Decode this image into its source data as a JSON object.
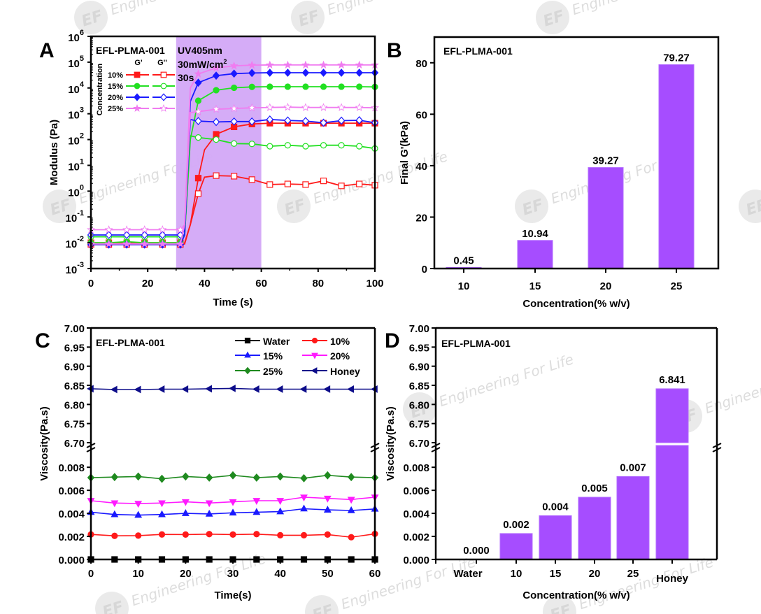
{
  "watermark": {
    "text": "Engineering For Life",
    "logo": "EFL"
  },
  "chart_data": [
    {
      "panel": "A",
      "type": "line",
      "title": "EFL-PLMA-001",
      "xlabel": "Time (s)",
      "ylabel": "Modulus (Pa)",
      "xlim": [
        0,
        100
      ],
      "ylim": [
        0.001,
        1000000
      ],
      "yscale": "log",
      "xticks": [
        "0",
        "20",
        "40",
        "60",
        "80",
        "100"
      ],
      "yticks": [
        {
          "base": "10",
          "exp": "-3"
        },
        {
          "base": "10",
          "exp": "-2"
        },
        {
          "base": "10",
          "exp": "-1"
        },
        {
          "base": "10",
          "exp": "0"
        },
        {
          "base": "10",
          "exp": "1"
        },
        {
          "base": "10",
          "exp": "2"
        },
        {
          "base": "10",
          "exp": "3"
        },
        {
          "base": "10",
          "exp": "4"
        },
        {
          "base": "10",
          "exp": "5"
        },
        {
          "base": "10",
          "exp": "6"
        }
      ],
      "shaded_region": {
        "x": [
          30,
          60
        ],
        "color": "#d3a8f7"
      },
      "annotations": {
        "line1": "UV405nm",
        "line2": "30mW/cm",
        "line2_sup": "2",
        "line3": "30s"
      },
      "legend": {
        "title": "Concentration",
        "col1": "G'",
        "col2": "G''",
        "rows": [
          {
            "label": "10%",
            "color": "#ff1a1a",
            "marker": "square"
          },
          {
            "label": "15%",
            "color": "#22e022",
            "marker": "circle"
          },
          {
            "label": "20%",
            "color": "#1a1aff",
            "marker": "diamond"
          },
          {
            "label": "25%",
            "color": "#f07cf0",
            "marker": "star"
          }
        ]
      },
      "series": [
        {
          "name": "10% G'",
          "color": "#ff1a1a",
          "marker": "square",
          "filled": true,
          "x": [
            0,
            6.3,
            12.6,
            18.9,
            25.2,
            31.5,
            33,
            35,
            37.8,
            40,
            44.1,
            50.4,
            56.7,
            63,
            69.3,
            75.6,
            81.9,
            88.2,
            94.5,
            100
          ],
          "y": [
            0.0085,
            0.0085,
            0.0085,
            0.0085,
            0.0085,
            0.0085,
            0.009,
            0.05,
            3.2,
            40,
            160,
            310,
            400,
            430,
            430,
            430,
            430,
            430,
            430,
            430
          ]
        },
        {
          "name": "10% G''",
          "color": "#ff1a1a",
          "marker": "square",
          "filled": false,
          "x": [
            0,
            6.3,
            12.6,
            18.9,
            25.2,
            31.5,
            33,
            35,
            37.8,
            40,
            44.1,
            50.4,
            56.7,
            63,
            69.3,
            75.6,
            81.9,
            88.2,
            94.5,
            100
          ],
          "y": [
            0.01,
            0.01,
            0.01,
            0.01,
            0.01,
            0.01,
            0.01,
            0.05,
            0.8,
            3.5,
            4,
            3.8,
            2.8,
            1.8,
            1.9,
            1.8,
            2.5,
            1.6,
            1.9,
            1.7
          ]
        },
        {
          "name": "15% G'",
          "color": "#22e022",
          "marker": "circle",
          "filled": true,
          "x": [
            0,
            6.3,
            12.6,
            18.9,
            25.2,
            31.5,
            33,
            35,
            37.8,
            44.1,
            50.4,
            56.7,
            63,
            69.3,
            75.6,
            81.9,
            88.2,
            94.5,
            100
          ],
          "y": [
            0.01,
            0.01,
            0.011,
            0.01,
            0.01,
            0.01,
            0.02,
            100,
            3200,
            8200,
            10200,
            11000,
            11200,
            11200,
            11200,
            11200,
            11200,
            11200,
            11000
          ]
        },
        {
          "name": "15% G''",
          "color": "#22e022",
          "marker": "circle",
          "filled": false,
          "x": [
            0,
            6.3,
            12.6,
            18.9,
            25.2,
            31.5,
            33,
            35,
            37.8,
            44.1,
            50.4,
            56.7,
            63,
            69.3,
            75.6,
            81.9,
            88.2,
            94.5,
            100
          ],
          "y": [
            0.017,
            0.017,
            0.017,
            0.017,
            0.017,
            0.017,
            0.02,
            140,
            120,
            100,
            70,
            68,
            55,
            60,
            55,
            60,
            60,
            55,
            45
          ]
        },
        {
          "name": "20% G'",
          "color": "#1a1aff",
          "marker": "diamond",
          "filled": true,
          "x": [
            0,
            6.3,
            12.6,
            18.9,
            25.2,
            31.5,
            33,
            35,
            37.8,
            44.1,
            50.4,
            56.7,
            63,
            69.3,
            75.6,
            81.9,
            88.2,
            94.5,
            100
          ],
          "y": [
            0.0085,
            0.0085,
            0.0085,
            0.0085,
            0.0085,
            0.0085,
            0.02,
            3000,
            16000,
            30000,
            36000,
            38000,
            39000,
            39000,
            39000,
            39000,
            39000,
            39000,
            39000
          ]
        },
        {
          "name": "20% G''",
          "color": "#1a1aff",
          "marker": "diamond",
          "filled": false,
          "x": [
            0,
            6.3,
            12.6,
            18.9,
            25.2,
            31.5,
            33,
            35,
            37.8,
            44.1,
            50.4,
            56.7,
            63,
            69.3,
            75.6,
            81.9,
            88.2,
            94.5,
            100
          ],
          "y": [
            0.02,
            0.02,
            0.02,
            0.02,
            0.02,
            0.02,
            0.03,
            600,
            520,
            480,
            500,
            500,
            600,
            550,
            520,
            450,
            540,
            560,
            450
          ]
        },
        {
          "name": "25% G'",
          "color": "#f07cf0",
          "marker": "star",
          "filled": true,
          "x": [
            0,
            6.3,
            12.6,
            18.9,
            25.2,
            31.5,
            33,
            35,
            37.8,
            44.1,
            50.4,
            56.7,
            63,
            69.3,
            75.6,
            81.9,
            88.2,
            94.5,
            100
          ],
          "y": [
            0.009,
            0.009,
            0.009,
            0.009,
            0.009,
            0.009,
            0.05,
            10000,
            35000,
            60000,
            72000,
            77000,
            78000,
            78000,
            78000,
            78000,
            78000,
            78000,
            78000
          ]
        },
        {
          "name": "25% G''",
          "color": "#f07cf0",
          "marker": "star",
          "filled": false,
          "x": [
            0,
            6.3,
            12.6,
            18.9,
            25.2,
            31.5,
            33,
            35,
            37.8,
            44.1,
            50.4,
            56.7,
            63,
            69.3,
            75.6,
            81.9,
            88.2,
            94.5,
            100
          ],
          "y": [
            0.032,
            0.032,
            0.032,
            0.032,
            0.032,
            0.032,
            0.05,
            1100,
            1200,
            1500,
            1600,
            1700,
            1750,
            1800,
            1750,
            1750,
            1750,
            1750,
            1700
          ]
        }
      ]
    },
    {
      "panel": "B",
      "type": "bar",
      "title": "EFL-PLMA-001",
      "xlabel": "Concentration(% w/v)",
      "ylabel": "Final G'(kPa)",
      "categories": [
        "10",
        "15",
        "20",
        "25"
      ],
      "values": [
        0.45,
        10.94,
        39.27,
        79.27
      ],
      "data_labels": [
        "0.45",
        "10.94",
        "39.27",
        "79.27"
      ],
      "ylim": [
        0,
        90
      ],
      "yticks": [
        "0",
        "20",
        "40",
        "60",
        "80"
      ],
      "bar_color": "#a64dff"
    },
    {
      "panel": "C",
      "type": "line",
      "title": "EFL-PLMA-001",
      "xlabel": "Time(s)",
      "ylabel": "Viscosity(Pa.s)",
      "xlim": [
        0,
        60
      ],
      "xticks": [
        "0",
        "10",
        "20",
        "30",
        "40",
        "50",
        "60"
      ],
      "y_broken_axis": {
        "lower": [
          0,
          0.0088
        ],
        "upper": [
          6.7,
          7.0
        ]
      },
      "yticks_lower": [
        "0.000",
        "0.002",
        "0.004",
        "0.006",
        "0.008"
      ],
      "yticks_upper": [
        "6.70",
        "6.75",
        "6.80",
        "6.85",
        "6.90",
        "6.95",
        "7.00"
      ],
      "legend": [
        "Water",
        "10%",
        "15%",
        "20%",
        "25%",
        "Honey"
      ],
      "x": [
        0,
        5,
        10,
        15,
        20,
        25,
        30,
        35,
        40,
        45,
        50,
        55,
        60
      ],
      "series": [
        {
          "name": "Water",
          "color": "#000000",
          "marker": "square",
          "values": [
            0,
            0,
            0,
            0,
            0,
            0,
            0,
            0,
            0,
            0,
            0,
            0,
            0
          ]
        },
        {
          "name": "10%",
          "color": "#ff1a1a",
          "marker": "circle",
          "values": [
            0.00217,
            0.00205,
            0.00207,
            0.00217,
            0.00216,
            0.0022,
            0.00216,
            0.0022,
            0.0021,
            0.0021,
            0.00216,
            0.00193,
            0.00222
          ]
        },
        {
          "name": "15%",
          "color": "#1a1aff",
          "marker": "triangle-up",
          "values": [
            0.0041,
            0.0039,
            0.00385,
            0.0039,
            0.004,
            0.00395,
            0.00405,
            0.0041,
            0.00415,
            0.0044,
            0.0043,
            0.00425,
            0.00438
          ]
        },
        {
          "name": "20%",
          "color": "#ff1aff",
          "marker": "triangle-down",
          "values": [
            0.0051,
            0.0049,
            0.00485,
            0.0049,
            0.005,
            0.0049,
            0.005,
            0.0051,
            0.0051,
            0.0054,
            0.0053,
            0.0052,
            0.0054
          ]
        },
        {
          "name": "25%",
          "color": "#1f8a1f",
          "marker": "diamond",
          "values": [
            0.0071,
            0.00715,
            0.0072,
            0.007,
            0.0072,
            0.0071,
            0.0073,
            0.0071,
            0.0072,
            0.00705,
            0.0073,
            0.00715,
            0.0071
          ]
        },
        {
          "name": "Honey",
          "color": "#0d0d8a",
          "marker": "triangle-left",
          "values": [
            6.841,
            6.839,
            6.839,
            6.84,
            6.84,
            6.841,
            6.842,
            6.84,
            6.84,
            6.84,
            6.84,
            6.84,
            6.84
          ]
        }
      ]
    },
    {
      "panel": "D",
      "type": "bar",
      "title": "EFL-PLMA-001",
      "xlabel": "Concentration(% w/v)",
      "ylabel": "Viscosity(Pa.s)",
      "categories": [
        "Water",
        "10",
        "15",
        "20",
        "25",
        "Honey"
      ],
      "values": [
        0.0,
        0.00225,
        0.0038,
        0.0054,
        0.0072,
        6.841
      ],
      "data_labels": [
        "0.000",
        "0.002",
        "0.004",
        "0.005",
        "0.007",
        "6.841"
      ],
      "y_broken_axis": {
        "lower": [
          0,
          0.0088
        ],
        "upper": [
          6.7,
          7.0
        ]
      },
      "yticks_lower": [
        "0.000",
        "0.002",
        "0.004",
        "0.006",
        "0.008"
      ],
      "yticks_upper": [
        "6.70",
        "6.75",
        "6.80",
        "6.85",
        "6.90",
        "6.95",
        "7.00"
      ],
      "bar_color": "#a64dff"
    }
  ]
}
